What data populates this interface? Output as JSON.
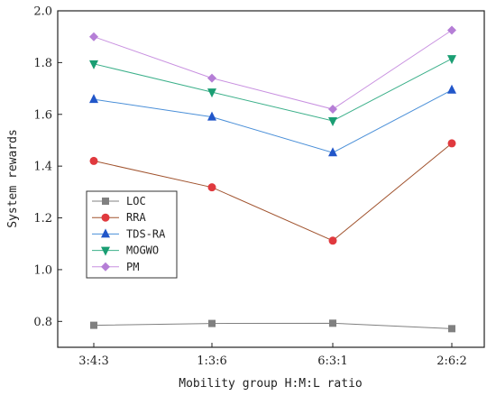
{
  "chart_data": {
    "type": "line",
    "title": "",
    "xlabel": "Mobility group H:M:L ratio",
    "ylabel": "System rewards",
    "categories": [
      "3:4:3",
      "1:3:6",
      "6:3:1",
      "2:6:2"
    ],
    "ylim": [
      0.7,
      2.0
    ],
    "yticks": [
      "0.8",
      "1.0",
      "1.2",
      "1.4",
      "1.6",
      "1.8",
      "2.0"
    ],
    "grid": false,
    "legend_position": "center-left",
    "series": [
      {
        "name": "LOC",
        "color": "#808080",
        "line_color": "#808080",
        "marker": "square",
        "values": [
          0.785,
          0.792,
          0.793,
          0.772
        ]
      },
      {
        "name": "RRA",
        "color": "#e0393e",
        "line_color": "#a0522d",
        "marker": "circle",
        "values": [
          1.42,
          1.318,
          1.112,
          1.488
        ]
      },
      {
        "name": "TDS-RA",
        "color": "#2156c9",
        "line_color": "#4a8fd8",
        "marker": "triangle-up",
        "values": [
          1.658,
          1.59,
          1.452,
          1.694
        ]
      },
      {
        "name": "MOGWO",
        "color": "#1a9e73",
        "line_color": "#3cb08a",
        "marker": "triangle-down",
        "values": [
          1.795,
          1.686,
          1.575,
          1.815
        ]
      },
      {
        "name": "PM",
        "color": "#b57ed6",
        "line_color": "#c890e0",
        "marker": "diamond",
        "values": [
          1.9,
          1.74,
          1.62,
          1.925
        ]
      }
    ]
  }
}
